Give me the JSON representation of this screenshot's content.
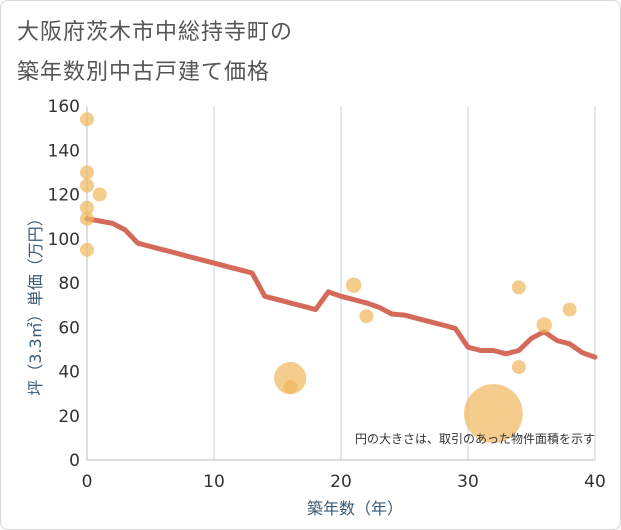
{
  "title_line1": "大阪府茨木市中総持寺町の",
  "title_line2": "築年数別中古戸建て価格",
  "chart_data": {
    "type": "scatter",
    "xlabel": "築年数（年）",
    "ylabel": "坪（3.3㎡）単価（万円）",
    "xlim": [
      0,
      40
    ],
    "ylim": [
      0,
      160
    ],
    "xticks": [
      0,
      10,
      20,
      30,
      40
    ],
    "yticks": [
      0,
      20,
      40,
      60,
      80,
      100,
      120,
      140,
      160
    ],
    "note": "円の大きさは、取引のあった物件面積を示す",
    "colors": {
      "points": "#f0b65a",
      "trend": "#d46a5a",
      "grid": "#c9d3df",
      "axis": "#bbbbbb"
    },
    "points": [
      {
        "x": 0,
        "y": 154,
        "size": 1
      },
      {
        "x": 0,
        "y": 130,
        "size": 1
      },
      {
        "x": 0,
        "y": 124,
        "size": 1
      },
      {
        "x": 1,
        "y": 120,
        "size": 1
      },
      {
        "x": 0,
        "y": 114,
        "size": 1
      },
      {
        "x": 0,
        "y": 109,
        "size": 1
      },
      {
        "x": 0,
        "y": 95,
        "size": 1
      },
      {
        "x": 16,
        "y": 37,
        "size": 2.3
      },
      {
        "x": 16,
        "y": 33,
        "size": 1
      },
      {
        "x": 21,
        "y": 79,
        "size": 1.1
      },
      {
        "x": 22,
        "y": 65,
        "size": 1
      },
      {
        "x": 32,
        "y": 21,
        "size": 4.2
      },
      {
        "x": 34,
        "y": 78,
        "size": 1
      },
      {
        "x": 34,
        "y": 42,
        "size": 1
      },
      {
        "x": 36,
        "y": 61,
        "size": 1.1
      },
      {
        "x": 38,
        "y": 68,
        "size": 1
      }
    ],
    "trend": {
      "x": [
        0,
        1,
        2,
        3,
        4,
        5,
        6,
        7,
        8,
        9,
        10,
        11,
        12,
        13,
        14,
        15,
        16,
        17,
        18,
        19,
        20,
        21,
        22,
        23,
        24,
        25,
        26,
        27,
        28,
        29,
        30,
        31,
        32,
        33,
        34,
        35,
        36,
        37,
        38,
        39,
        40
      ],
      "y": [
        109,
        108,
        107,
        104,
        98,
        96.5,
        95,
        93.5,
        92,
        90.5,
        89,
        87.5,
        86,
        84.5,
        74,
        72.5,
        71,
        69.5,
        68,
        76,
        74,
        72.5,
        71,
        69,
        66,
        65.5,
        64,
        62.5,
        61,
        59.5,
        51,
        49.5,
        49.5,
        48,
        49.5,
        55,
        58,
        54,
        52.5,
        48.5,
        46.5
      ]
    }
  }
}
